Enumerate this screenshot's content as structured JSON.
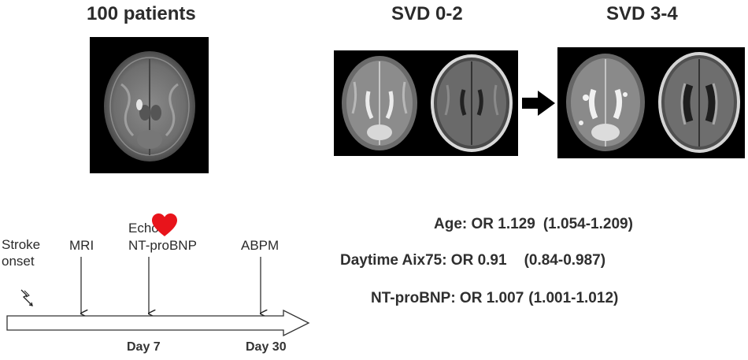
{
  "cohort": {
    "title": "100 patients"
  },
  "groups": [
    {
      "label": "SVD 0-2"
    },
    {
      "label": "SVD 3-4"
    }
  ],
  "timeline": {
    "onset_line1": "Stroke",
    "onset_line2": "onset",
    "events": [
      {
        "label": "MRI"
      },
      {
        "label_line1": "Echo",
        "label_line2": "NT-proBNP"
      },
      {
        "label": "ABPM"
      }
    ],
    "days": [
      "Day 7",
      "Day 30"
    ]
  },
  "results": [
    {
      "label": "Age: OR 1.129",
      "ci": "(1.054-1.209)"
    },
    {
      "label": "Daytime Aix75: OR 0.91",
      "ci": "(0.84-0.987)"
    },
    {
      "label": "NT-proBNP: OR 1.007",
      "ci": "(1.001-1.012)"
    }
  ],
  "colors": {
    "heart": "#e8141b",
    "arrow": "#000000",
    "text": "#2b2b2b"
  },
  "icons": [
    "brain-mri-icon",
    "heart-icon",
    "lightning-bolt-icon",
    "right-arrow-icon"
  ]
}
